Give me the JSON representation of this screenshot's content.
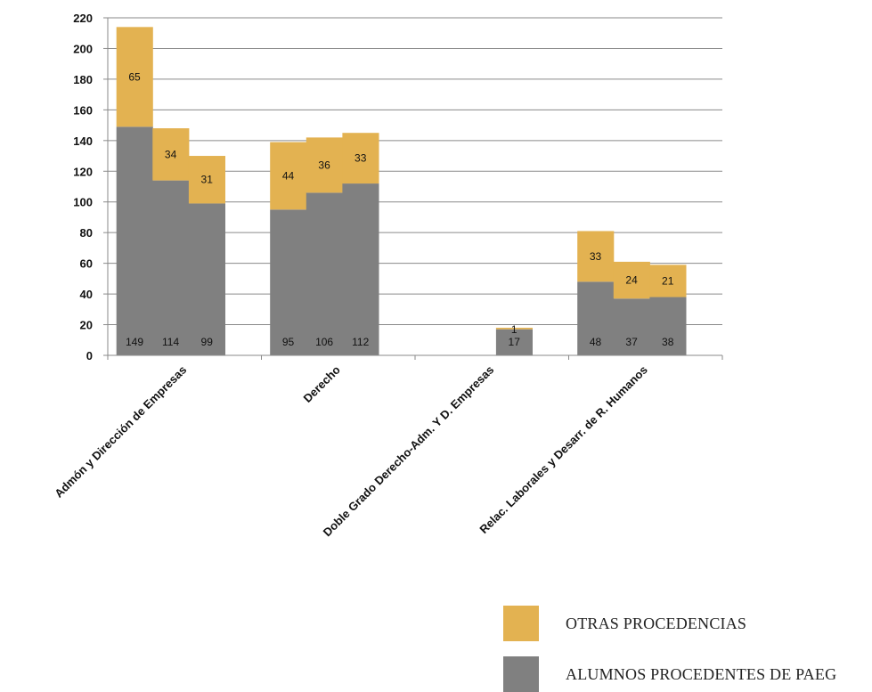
{
  "chart_data": {
    "type": "bar",
    "stacked": true,
    "ylim": [
      0,
      220
    ],
    "yticks": [
      0,
      20,
      40,
      60,
      80,
      100,
      120,
      140,
      160,
      180,
      200,
      220
    ],
    "grid": true,
    "legend_placement": "bottom-right",
    "groups": [
      {
        "label": "Admón y Dirección de Empresas",
        "paeg": [
          149,
          114,
          99
        ],
        "otras": [
          65,
          34,
          31
        ]
      },
      {
        "label": "Derecho",
        "paeg": [
          95,
          106,
          112
        ],
        "otras": [
          44,
          36,
          33
        ]
      },
      {
        "label": "Doble Grado Derecho-Adm. Y D. Empresas",
        "paeg": [
          17
        ],
        "otras": [
          1
        ]
      },
      {
        "label": "Relac. Laborales y Desarr. de R. Humanos",
        "paeg": [
          48,
          37,
          38
        ],
        "otras": [
          33,
          24,
          21
        ]
      }
    ],
    "series": [
      {
        "key": "otras",
        "name": "OTRAS PROCEDENCIAS",
        "color": "#E3B251"
      },
      {
        "key": "paeg",
        "name": "ALUMNOS PROCEDENTES DE PAEG",
        "color": "#808080"
      }
    ]
  }
}
